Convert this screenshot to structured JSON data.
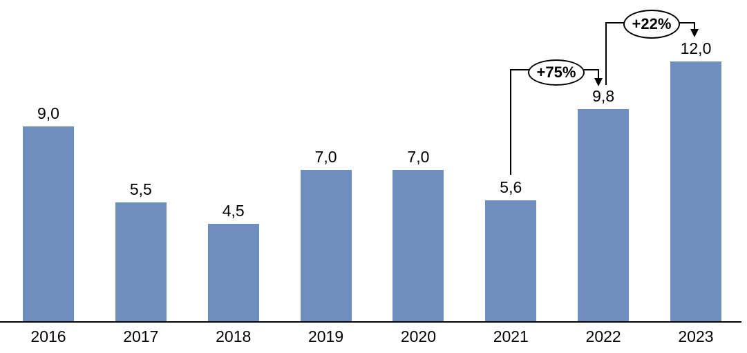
{
  "chart_data": {
    "type": "bar",
    "categories": [
      "2016",
      "2017",
      "2018",
      "2019",
      "2020",
      "2021",
      "2022",
      "2023"
    ],
    "values": [
      9.0,
      5.5,
      4.5,
      7.0,
      7.0,
      5.6,
      9.8,
      12.0
    ],
    "value_labels": [
      "9,0",
      "5,5",
      "4,5",
      "7,0",
      "7,0",
      "5,6",
      "9,8",
      "12,0"
    ],
    "title": "",
    "xlabel": "",
    "ylabel": "",
    "ylim": [
      0,
      14.8
    ],
    "grid": false,
    "legend": false,
    "y_axis_visible": false,
    "bar_color": "#6D8EBE",
    "axis_color": "#000000",
    "annotation_fill": "#FFFFFF",
    "annotation_border": "#000000",
    "annotations": [
      {
        "label": "+75%",
        "from": "2021",
        "to": "2022"
      },
      {
        "label": "+22%",
        "from": "2022",
        "to": "2023"
      }
    ]
  }
}
